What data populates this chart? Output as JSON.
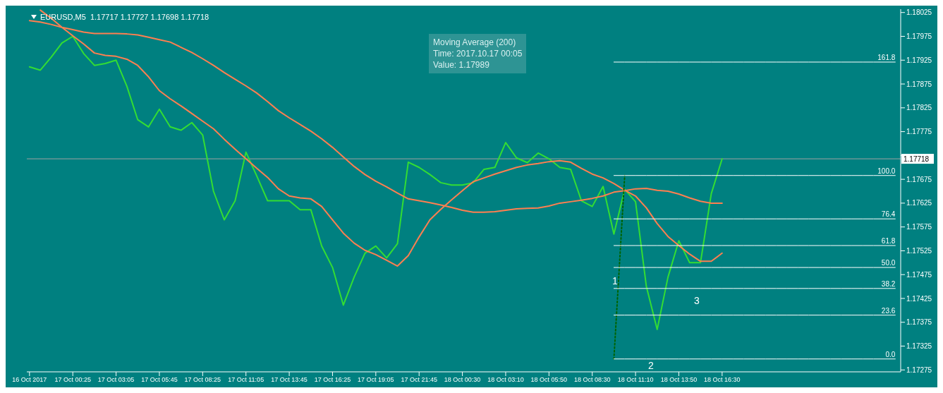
{
  "chart_data": {
    "type": "line",
    "title": "EURUSD,M5  1.17717 1.17727 1.17698 1.17718",
    "annotations": [
      "Moving Average (200)",
      "Time: 2017.10.17 00:05",
      "Value: 1.17989",
      "1",
      "2",
      "3"
    ],
    "categories": [
      "16 Oct 2017",
      null,
      null,
      null,
      "17 Oct 00:25",
      null,
      null,
      null,
      "17 Oct 03:05",
      null,
      null,
      null,
      "17 Oct 05:45",
      null,
      null,
      null,
      "17 Oct 08:25",
      null,
      null,
      null,
      "17 Oct 11:05",
      null,
      null,
      null,
      "17 Oct 13:45",
      null,
      null,
      null,
      "17 Oct 16:25",
      null,
      null,
      null,
      "17 Oct 19:05",
      null,
      null,
      null,
      "17 Oct 21:45",
      null,
      null,
      null,
      "18 Oct 00:30",
      null,
      null,
      null,
      "18 Oct 03:10",
      null,
      null,
      null,
      "18 Oct 05:50",
      null,
      null,
      null,
      "18 Oct 08:30",
      null,
      null,
      null,
      "18 Oct 11:10",
      null,
      null,
      null,
      "18 Oct 13:50",
      null,
      null,
      null,
      "18 Oct 16:30",
      null,
      null,
      null,
      null,
      null,
      null,
      null,
      null,
      null,
      null,
      null,
      null,
      null,
      null,
      null,
      null
    ],
    "ylim": [
      1.17271,
      1.18032
    ],
    "yticks": [
      1.17275,
      1.17325,
      1.17375,
      1.17425,
      1.17475,
      1.17525,
      1.17575,
      1.17625,
      1.17675,
      {
        "value": 1.17725,
        "label": null
      },
      1.17775,
      1.17825,
      1.17875,
      1.17925,
      1.17975,
      1.18025
    ],
    "grid": false,
    "legend": false,
    "marker": "none",
    "ref_lines": [
      {
        "axis": "y",
        "value": 1.17718,
        "label": "1.17718",
        "color": "#a0a0a0"
      }
    ],
    "series": [
      {
        "color": "#33dd33",
        "values": [
          1.17911,
          1.17904,
          1.17931,
          1.17961,
          1.17975,
          1.17939,
          1.17914,
          1.17918,
          1.17925,
          1.1787,
          1.178,
          1.17785,
          1.17822,
          1.17785,
          1.17778,
          1.17794,
          1.17768,
          1.1765,
          1.1759,
          1.1763,
          1.17732,
          1.17682,
          1.1763,
          1.1763,
          1.1763,
          1.17611,
          1.17611,
          1.17535,
          1.1749,
          1.17411,
          1.1747,
          1.1752,
          1.17535,
          1.1751,
          1.1754,
          1.17711,
          1.177,
          1.17685,
          1.17668,
          1.17663,
          1.17663,
          1.17668,
          1.17696,
          1.177,
          1.17752,
          1.1772,
          1.1771,
          1.1773,
          1.17718,
          1.177,
          1.17696,
          1.1763,
          1.17618,
          1.1766,
          1.1756,
          1.17654,
          1.17628,
          1.1745,
          1.1736,
          1.1747,
          1.17546,
          1.175,
          1.175,
          1.17645,
          1.17718,
          null,
          null,
          null,
          null,
          null,
          null,
          null,
          null,
          null,
          null,
          null,
          null,
          null,
          null,
          null,
          null
        ]
      },
      {
        "color": "#ff7f50",
        "values": [
          null,
          1.1803,
          1.18013,
          1.17994,
          1.17976,
          1.17959,
          1.1794,
          1.17935,
          1.17933,
          1.17927,
          1.17914,
          1.1789,
          1.17861,
          1.17844,
          1.17829,
          1.17813,
          1.17797,
          1.17781,
          1.17759,
          1.17738,
          1.17718,
          1.17698,
          1.17679,
          1.17655,
          1.1764,
          1.17636,
          1.17634,
          1.17618,
          1.1759,
          1.17562,
          1.17541,
          1.17526,
          1.17517,
          1.17505,
          1.17493,
          1.17515,
          1.17554,
          1.1759,
          1.17612,
          1.17632,
          1.17651,
          1.1767,
          1.17678,
          1.17686,
          1.17693,
          1.177,
          1.17705,
          1.17708,
          1.17712,
          1.17714,
          1.17711,
          1.17698,
          1.17686,
          1.17678,
          1.17666,
          1.17652,
          1.1764,
          1.17615,
          1.17582,
          1.17555,
          1.17536,
          1.17518,
          1.17503,
          1.17503,
          1.1752,
          null,
          null,
          null,
          null,
          null,
          null,
          null,
          null,
          null,
          null,
          null,
          null,
          null,
          null,
          null,
          null
        ]
      },
      {
        "color": "#ff7f50",
        "values": [
          1.18008,
          1.18005,
          1.18,
          1.17994,
          1.17989,
          1.17984,
          1.17981,
          1.17981,
          1.17981,
          1.1798,
          1.17978,
          1.17973,
          1.17968,
          1.17963,
          1.17952,
          1.17941,
          1.17928,
          1.17914,
          1.17899,
          1.17885,
          1.17871,
          1.17856,
          1.17838,
          1.17819,
          1.17804,
          1.1779,
          1.17776,
          1.1776,
          1.17742,
          1.17722,
          1.17702,
          1.17685,
          1.17671,
          1.17659,
          1.17646,
          1.17634,
          1.1763,
          1.17626,
          1.17621,
          1.17616,
          1.1761,
          1.17606,
          1.17606,
          1.17607,
          1.1761,
          1.17613,
          1.17614,
          1.17615,
          1.17619,
          1.17625,
          1.17628,
          1.17631,
          1.17635,
          1.1764,
          1.17648,
          1.17651,
          1.17655,
          1.17656,
          1.17652,
          1.1765,
          1.17644,
          1.17636,
          1.17629,
          1.17625,
          1.17625,
          null,
          null,
          null,
          null,
          null,
          null,
          null,
          null,
          null,
          null,
          null,
          null,
          null,
          null,
          null,
          null
        ]
      },
      {
        "color": "#006400",
        "line_style": "dotted",
        "values": [
          null,
          null,
          null,
          null,
          null,
          null,
          null,
          null,
          null,
          null,
          null,
          null,
          null,
          null,
          null,
          null,
          null,
          null,
          null,
          null,
          null,
          null,
          null,
          null,
          null,
          null,
          null,
          null,
          null,
          null,
          null,
          null,
          null,
          null,
          null,
          null,
          null,
          null,
          null,
          null,
          null,
          null,
          null,
          null,
          null,
          null,
          null,
          null,
          null,
          null,
          null,
          null,
          null,
          null,
          1.17298,
          1.17683,
          null,
          null,
          null,
          null,
          null,
          null,
          null,
          null,
          null,
          null,
          null,
          null,
          null,
          null,
          null,
          null,
          null,
          null,
          null,
          null,
          null,
          null,
          null,
          null,
          null
        ]
      },
      {
        "name": "161.8",
        "color": "#ffffff",
        "values": [
          null,
          null,
          null,
          null,
          null,
          null,
          null,
          null,
          null,
          null,
          null,
          null,
          null,
          null,
          null,
          null,
          null,
          null,
          null,
          null,
          null,
          null,
          null,
          null,
          null,
          null,
          null,
          null,
          null,
          null,
          null,
          null,
          null,
          null,
          null,
          null,
          null,
          null,
          null,
          null,
          null,
          null,
          null,
          null,
          null,
          null,
          null,
          null,
          null,
          null,
          null,
          null,
          null,
          null,
          1.17921,
          1.17921,
          1.17921,
          1.17921,
          1.17921,
          1.17921,
          1.17921,
          1.17921,
          1.17921,
          1.17921,
          1.17921,
          1.17921,
          1.17921,
          1.17921,
          1.17921,
          1.17921,
          1.17921,
          1.17921,
          1.17921,
          1.17921,
          1.17921,
          1.17921,
          1.17921,
          1.17921,
          1.17921,
          1.17921,
          1.17921
        ]
      },
      {
        "name": "100.0",
        "color": "#ffffff",
        "values": [
          null,
          null,
          null,
          null,
          null,
          null,
          null,
          null,
          null,
          null,
          null,
          null,
          null,
          null,
          null,
          null,
          null,
          null,
          null,
          null,
          null,
          null,
          null,
          null,
          null,
          null,
          null,
          null,
          null,
          null,
          null,
          null,
          null,
          null,
          null,
          null,
          null,
          null,
          null,
          null,
          null,
          null,
          null,
          null,
          null,
          null,
          null,
          null,
          null,
          null,
          null,
          null,
          null,
          null,
          1.17683,
          1.17683,
          1.17683,
          1.17683,
          1.17683,
          1.17683,
          1.17683,
          1.17683,
          1.17683,
          1.17683,
          1.17683,
          1.17683,
          1.17683,
          1.17683,
          1.17683,
          1.17683,
          1.17683,
          1.17683,
          1.17683,
          1.17683,
          1.17683,
          1.17683,
          1.17683,
          1.17683,
          1.17683,
          1.17683,
          1.17683
        ]
      },
      {
        "name": "76.4",
        "color": "#ffffff",
        "values": [
          null,
          null,
          null,
          null,
          null,
          null,
          null,
          null,
          null,
          null,
          null,
          null,
          null,
          null,
          null,
          null,
          null,
          null,
          null,
          null,
          null,
          null,
          null,
          null,
          null,
          null,
          null,
          null,
          null,
          null,
          null,
          null,
          null,
          null,
          null,
          null,
          null,
          null,
          null,
          null,
          null,
          null,
          null,
          null,
          null,
          null,
          null,
          null,
          null,
          null,
          null,
          null,
          null,
          null,
          1.17592,
          1.17592,
          1.17592,
          1.17592,
          1.17592,
          1.17592,
          1.17592,
          1.17592,
          1.17592,
          1.17592,
          1.17592,
          1.17592,
          1.17592,
          1.17592,
          1.17592,
          1.17592,
          1.17592,
          1.17592,
          1.17592,
          1.17592,
          1.17592,
          1.17592,
          1.17592,
          1.17592,
          1.17592,
          1.17592,
          1.17592
        ]
      },
      {
        "name": "61.8",
        "color": "#ffffff",
        "values": [
          null,
          null,
          null,
          null,
          null,
          null,
          null,
          null,
          null,
          null,
          null,
          null,
          null,
          null,
          null,
          null,
          null,
          null,
          null,
          null,
          null,
          null,
          null,
          null,
          null,
          null,
          null,
          null,
          null,
          null,
          null,
          null,
          null,
          null,
          null,
          null,
          null,
          null,
          null,
          null,
          null,
          null,
          null,
          null,
          null,
          null,
          null,
          null,
          null,
          null,
          null,
          null,
          null,
          null,
          1.17536,
          1.17536,
          1.17536,
          1.17536,
          1.17536,
          1.17536,
          1.17536,
          1.17536,
          1.17536,
          1.17536,
          1.17536,
          1.17536,
          1.17536,
          1.17536,
          1.17536,
          1.17536,
          1.17536,
          1.17536,
          1.17536,
          1.17536,
          1.17536,
          1.17536,
          1.17536,
          1.17536,
          1.17536,
          1.17536,
          1.17536
        ]
      },
      {
        "name": "50.0",
        "color": "#ffffff",
        "values": [
          null,
          null,
          null,
          null,
          null,
          null,
          null,
          null,
          null,
          null,
          null,
          null,
          null,
          null,
          null,
          null,
          null,
          null,
          null,
          null,
          null,
          null,
          null,
          null,
          null,
          null,
          null,
          null,
          null,
          null,
          null,
          null,
          null,
          null,
          null,
          null,
          null,
          null,
          null,
          null,
          null,
          null,
          null,
          null,
          null,
          null,
          null,
          null,
          null,
          null,
          null,
          null,
          null,
          null,
          1.1749,
          1.1749,
          1.1749,
          1.1749,
          1.1749,
          1.1749,
          1.1749,
          1.1749,
          1.1749,
          1.1749,
          1.1749,
          1.1749,
          1.1749,
          1.1749,
          1.1749,
          1.1749,
          1.1749,
          1.1749,
          1.1749,
          1.1749,
          1.1749,
          1.1749,
          1.1749,
          1.1749,
          1.1749,
          1.1749,
          1.1749
        ]
      },
      {
        "name": "38.2",
        "color": "#ffffff",
        "values": [
          null,
          null,
          null,
          null,
          null,
          null,
          null,
          null,
          null,
          null,
          null,
          null,
          null,
          null,
          null,
          null,
          null,
          null,
          null,
          null,
          null,
          null,
          null,
          null,
          null,
          null,
          null,
          null,
          null,
          null,
          null,
          null,
          null,
          null,
          null,
          null,
          null,
          null,
          null,
          null,
          null,
          null,
          null,
          null,
          null,
          null,
          null,
          null,
          null,
          null,
          null,
          null,
          null,
          null,
          1.17446,
          1.17446,
          1.17446,
          1.17446,
          1.17446,
          1.17446,
          1.17446,
          1.17446,
          1.17446,
          1.17446,
          1.17446,
          1.17446,
          1.17446,
          1.17446,
          1.17446,
          1.17446,
          1.17446,
          1.17446,
          1.17446,
          1.17446,
          1.17446,
          1.17446,
          1.17446,
          1.17446,
          1.17446,
          1.17446,
          1.17446
        ]
      },
      {
        "name": "23.6",
        "color": "#ffffff",
        "values": [
          null,
          null,
          null,
          null,
          null,
          null,
          null,
          null,
          null,
          null,
          null,
          null,
          null,
          null,
          null,
          null,
          null,
          null,
          null,
          null,
          null,
          null,
          null,
          null,
          null,
          null,
          null,
          null,
          null,
          null,
          null,
          null,
          null,
          null,
          null,
          null,
          null,
          null,
          null,
          null,
          null,
          null,
          null,
          null,
          null,
          null,
          null,
          null,
          null,
          null,
          null,
          null,
          null,
          null,
          1.1739,
          1.1739,
          1.1739,
          1.1739,
          1.1739,
          1.1739,
          1.1739,
          1.1739,
          1.1739,
          1.1739,
          1.1739,
          1.1739,
          1.1739,
          1.1739,
          1.1739,
          1.1739,
          1.1739,
          1.1739,
          1.1739,
          1.1739,
          1.1739,
          1.1739,
          1.1739,
          1.1739,
          1.1739,
          1.1739,
          1.1739
        ]
      },
      {
        "name": "0.0",
        "color": "#ffffff",
        "values": [
          null,
          null,
          null,
          null,
          null,
          null,
          null,
          null,
          null,
          null,
          null,
          null,
          null,
          null,
          null,
          null,
          null,
          null,
          null,
          null,
          null,
          null,
          null,
          null,
          null,
          null,
          null,
          null,
          null,
          null,
          null,
          null,
          null,
          null,
          null,
          null,
          null,
          null,
          null,
          null,
          null,
          null,
          null,
          null,
          null,
          null,
          null,
          null,
          null,
          null,
          null,
          null,
          null,
          null,
          1.17298,
          1.17298,
          1.17298,
          1.17298,
          1.17298,
          1.17298,
          1.17298,
          1.17298,
          1.17298,
          1.17298,
          1.17298,
          1.17298,
          1.17298,
          1.17298,
          1.17298,
          1.17298,
          1.17298,
          1.17298,
          1.17298,
          1.17298,
          1.17298,
          1.17298,
          1.17298,
          1.17298,
          1.17298,
          1.17298,
          1.17298
        ]
      }
    ]
  }
}
